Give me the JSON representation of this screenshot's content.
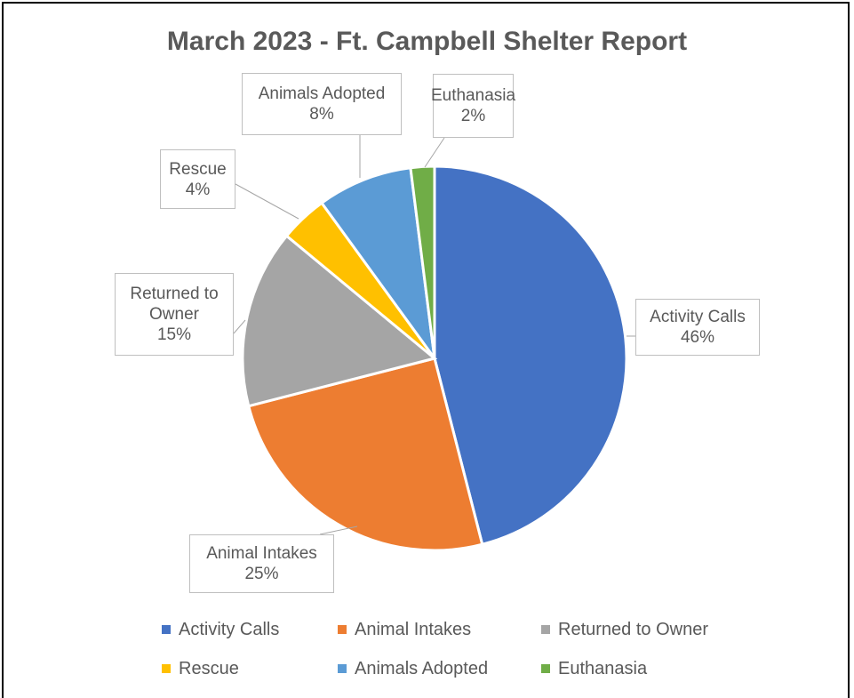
{
  "chart_data": {
    "type": "pie",
    "title": "March 2023 - Ft. Campbell Shelter Report",
    "categories": [
      "Activity Calls",
      "Animal Intakes",
      "Returned to Owner",
      "Rescue",
      "Animals Adopted",
      "Euthanasia"
    ],
    "values": [
      46,
      25,
      15,
      4,
      8,
      2
    ],
    "value_labels": [
      "46%",
      "25%",
      "15%",
      "4%",
      "8%",
      "2%"
    ],
    "colors": [
      "#4472c4",
      "#ed7d31",
      "#a5a5a5",
      "#ffc000",
      "#5b9bd5",
      "#70ad47"
    ],
    "legend": "bottom"
  }
}
